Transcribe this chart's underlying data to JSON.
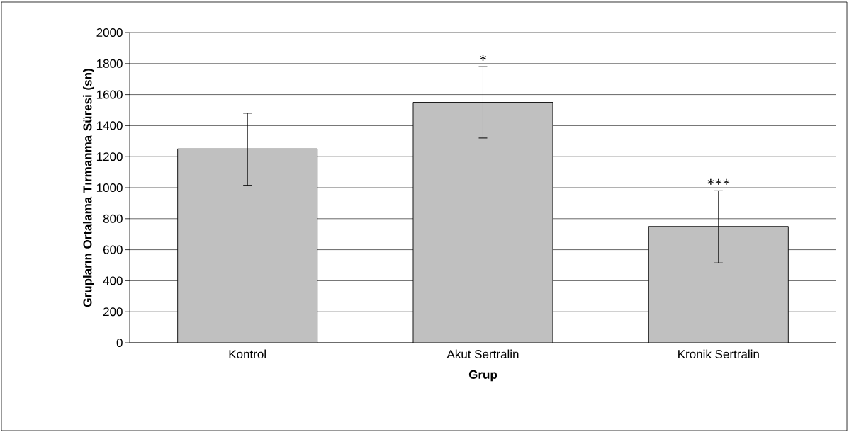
{
  "chart_data": {
    "type": "bar",
    "xlabel": "Grup",
    "ylabel": "Grupların Ortalama Tırmanma Süresi (sn)",
    "categories": [
      "Kontrol",
      "Akut Sertralin",
      "Kronik Sertralin"
    ],
    "values": [
      1250,
      1550,
      750
    ],
    "errors": [
      [
        1015,
        1480
      ],
      [
        1320,
        1780
      ],
      [
        515,
        980
      ]
    ],
    "color": "#c0c0c0",
    "ylim": [
      0,
      2000
    ],
    "yticks": [
      0,
      200,
      400,
      600,
      800,
      1000,
      1200,
      1400,
      1600,
      1800,
      2000
    ],
    "grid": "y",
    "annotations": [
      "*",
      "***"
    ]
  }
}
